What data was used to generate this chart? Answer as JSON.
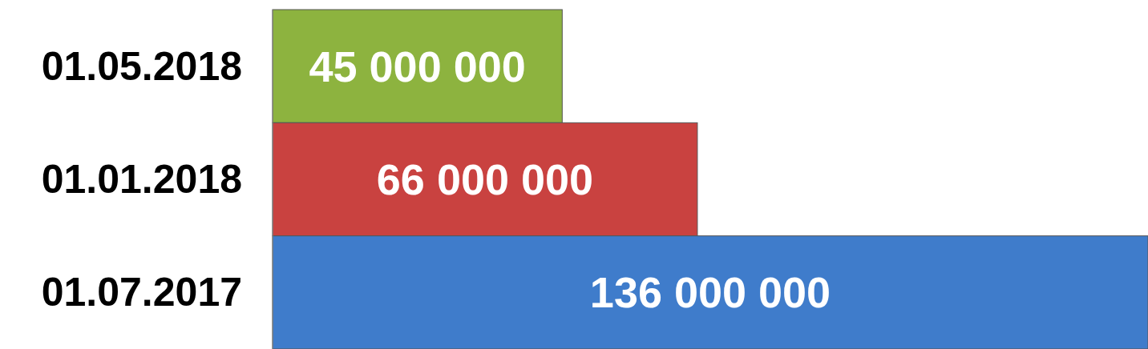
{
  "chart_data": {
    "type": "bar",
    "orientation": "horizontal",
    "categories": [
      "01.05.2018",
      "01.01.2018",
      "01.07.2017"
    ],
    "values": [
      45000000,
      66000000,
      136000000
    ],
    "colors": [
      "#8db33f",
      "#c94240",
      "#3f7ccb"
    ],
    "value_labels": [
      "45 000 000",
      "66 000 000",
      "136 000 000"
    ],
    "xlim": [
      0,
      136000000
    ],
    "tick_labels": "y"
  }
}
